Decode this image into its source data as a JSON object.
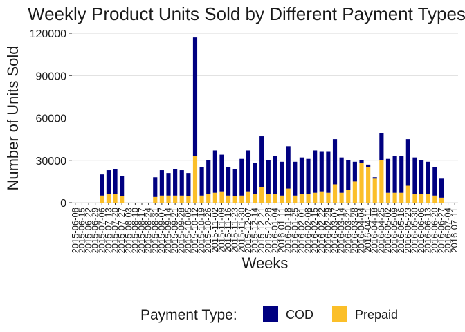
{
  "chart_data": {
    "type": "stacked_bar",
    "title": "Weekly Product Units Sold by Different Payment Types",
    "x_label": "Weeks",
    "y_label": "Number of Units Sold",
    "legend_title": "Payment Type:",
    "legend_position": "bottom",
    "categories": [
      "2015-06-08",
      "2015-06-15",
      "2015-06-22",
      "2015-06-29",
      "2015-07-06",
      "2015-07-13",
      "2015-07-20",
      "2015-07-27",
      "2015-08-03",
      "2015-08-10",
      "2015-08-17",
      "2015-08-24",
      "2015-08-31",
      "2015-09-07",
      "2015-09-14",
      "2015-09-21",
      "2015-09-28",
      "2015-10-05",
      "2015-10-12",
      "2015-10-19",
      "2015-10-26",
      "2015-11-02",
      "2015-11-09",
      "2015-11-16",
      "2015-11-23",
      "2015-11-30",
      "2015-12-07",
      "2015-12-14",
      "2015-12-21",
      "2015-12-28",
      "2016-01-04",
      "2016-01-11",
      "2016-01-18",
      "2016-01-25",
      "2016-02-01",
      "2016-02-08",
      "2016-02-15",
      "2016-02-22",
      "2016-02-29",
      "2016-03-07",
      "2016-03-14",
      "2016-03-21",
      "2016-03-28",
      "2016-04-04",
      "2016-04-11",
      "2016-04-18",
      "2016-04-25",
      "2016-05-02",
      "2016-05-09",
      "2016-05-16",
      "2016-05-23",
      "2016-05-30",
      "2016-06-06",
      "2016-06-13",
      "2016-06-20",
      "2016-06-27",
      "2016-07-04",
      "2016-07-11"
    ],
    "series": [
      {
        "name": "Prepaid",
        "color": "#fbbf29",
        "values": [
          null,
          null,
          null,
          null,
          5000,
          6000,
          6000,
          4500,
          null,
          null,
          null,
          null,
          4000,
          5000,
          5000,
          5000,
          5000,
          4500,
          33000,
          5000,
          6000,
          7000,
          8000,
          5000,
          4500,
          5000,
          8000,
          6000,
          11000,
          6000,
          6000,
          5000,
          10000,
          5000,
          6000,
          6000,
          7000,
          8000,
          7000,
          13000,
          7000,
          9000,
          15000,
          28000,
          25000,
          17000,
          30000,
          7000,
          7000,
          7000,
          12000,
          6000,
          6000,
          6000,
          5000,
          3500,
          null,
          null
        ]
      },
      {
        "name": "COD",
        "color": "#000080",
        "values": [
          null,
          null,
          null,
          null,
          15000,
          17000,
          18000,
          14500,
          null,
          null,
          null,
          null,
          14000,
          18000,
          16000,
          19000,
          18000,
          16500,
          84000,
          20000,
          24000,
          30000,
          26000,
          20000,
          19500,
          26000,
          29000,
          22000,
          36000,
          24000,
          27000,
          24000,
          30000,
          24000,
          26000,
          25000,
          30000,
          28000,
          29000,
          32000,
          25000,
          21000,
          14000,
          2000,
          2000,
          1000,
          19000,
          24000,
          26000,
          26000,
          33000,
          26000,
          24000,
          23000,
          20000,
          13500,
          null,
          null
        ]
      }
    ],
    "legend_order": [
      1,
      0
    ],
    "ylim": [
      0,
      120000
    ],
    "yticks": [
      0,
      30000,
      60000,
      90000,
      120000
    ],
    "grid": true
  }
}
